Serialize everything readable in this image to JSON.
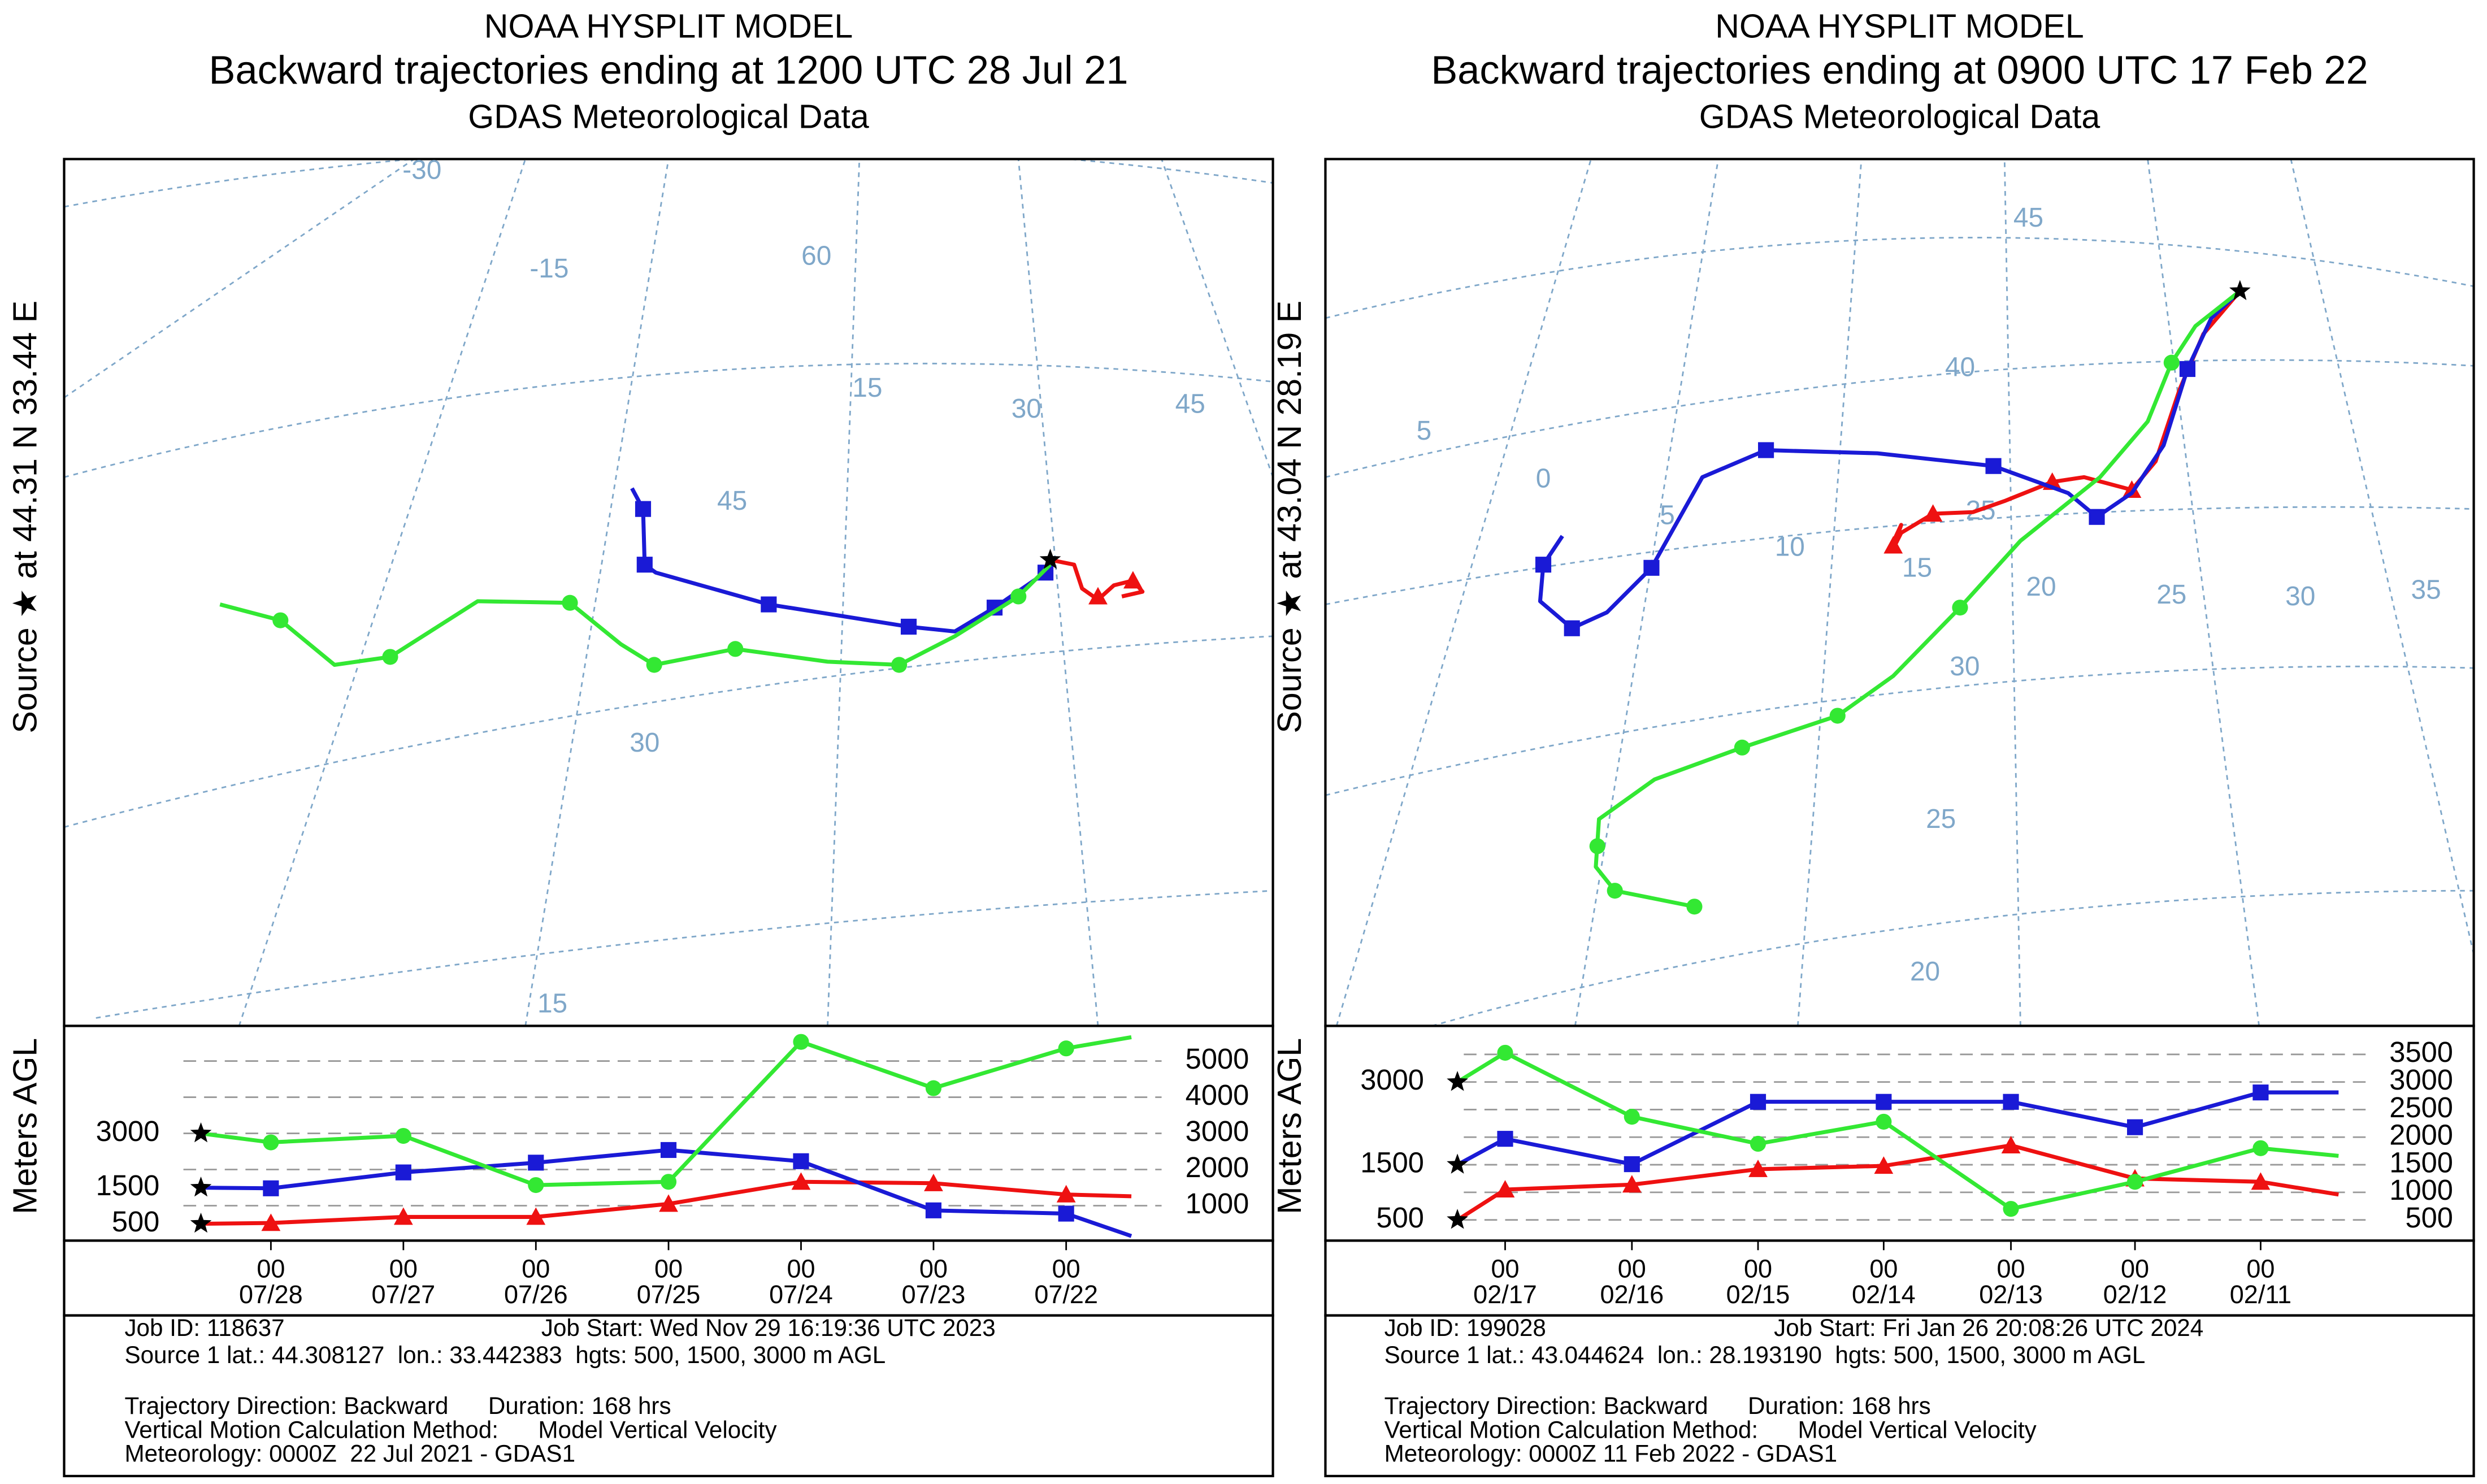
{
  "chart_data": [
    {
      "type": "trajectory",
      "title": "NOAA HYSPLIT MODEL",
      "subtitle": "Backward trajectories ending at 1200 UTC 28 Jul 21",
      "subtitle2": "GDAS Meteorological Data",
      "source_label": "Source ★ at 44.31 N 33.44 E",
      "ylabel": "Meters AGL",
      "start_heights": [
        500,
        1500,
        3000
      ],
      "hour_label": "00",
      "categories": [
        null,
        "07/28",
        "07/27",
        "07/26",
        "07/25",
        "07/24",
        "07/23",
        "07/22",
        null
      ],
      "series": [
        {
          "color": "#ee1111",
          "values": [
            500,
            520,
            690,
            690,
            1050,
            1660,
            1620,
            1310,
            1260
          ]
        },
        {
          "color": "#1a1ad6",
          "values": [
            1500,
            1480,
            1920,
            2190,
            2540,
            2230,
            870,
            780,
            160
          ]
        },
        {
          "color": "#33e833",
          "values": [
            3000,
            2750,
            2930,
            1570,
            1660,
            5530,
            4250,
            5350,
            5660
          ]
        }
      ],
      "ylim": [
        0,
        5840
      ],
      "yticks": [
        1000,
        2000,
        3000,
        4000,
        5000
      ],
      "map": {
        "grid_labels": [
          "-30",
          "-15",
          "60",
          "15",
          "45",
          "30",
          "45",
          "30",
          "15"
        ]
      },
      "footer": {
        "job_id": "Job ID: 118637",
        "job_start": "Job Start: Wed Nov 29 16:19:36 UTC 2023",
        "lines": [
          "Source 1 lat.: 44.308127  lon.: 33.442383  hgts: 500, 1500, 3000 m AGL",
          "Trajectory Direction: Backward      Duration: 168 hrs",
          "Vertical Motion Calculation Method:      Model Vertical Velocity",
          "Meteorology: 0000Z  22 Jul 2021 - GDAS1"
        ]
      }
    },
    {
      "type": "trajectory",
      "title": "NOAA HYSPLIT MODEL",
      "subtitle": "Backward trajectories ending at 0900 UTC 17 Feb 22",
      "subtitle2": "GDAS Meteorological Data",
      "source_label": "Source ★ at 43.04 N 28.19 E",
      "ylabel": "Meters AGL",
      "start_heights": [
        500,
        1500,
        3000
      ],
      "hour_label": "00",
      "categories": [
        null,
        "02/17",
        "02/16",
        "02/15",
        "02/14",
        "02/13",
        "02/12",
        "02/11",
        null
      ],
      "series": [
        {
          "color": "#ee1111",
          "values": [
            500,
            1050,
            1140,
            1420,
            1480,
            1850,
            1250,
            1190,
            960
          ]
        },
        {
          "color": "#1a1ad6",
          "values": [
            1500,
            1970,
            1510,
            2640,
            2640,
            2640,
            2180,
            2810,
            2810
          ]
        },
        {
          "color": "#33e833",
          "values": [
            3000,
            3530,
            2370,
            1880,
            2280,
            700,
            1190,
            1800,
            1660
          ]
        }
      ],
      "ylim": [
        0,
        3930
      ],
      "yticks": [
        500,
        1000,
        1500,
        2000,
        2500,
        3000,
        3500
      ],
      "map": {
        "grid_labels": [
          "45",
          "40",
          "5",
          "0",
          "5",
          "10",
          "15",
          "25",
          "20",
          "25",
          "30",
          "35",
          "30",
          "25",
          "20"
        ]
      },
      "footer": {
        "job_id": "Job ID: 199028",
        "job_start": "Job Start: Fri Jan 26 20:08:26 UTC 2024",
        "lines": [
          "Source 1 lat.: 43.044624  lon.: 28.193190  hgts: 500, 1500, 3000 m AGL",
          "Trajectory Direction: Backward      Duration: 168 hrs",
          "Vertical Motion Calculation Method:      Model Vertical Velocity",
          "Meteorology: 0000Z 11 Feb 2022 - GDAS1"
        ]
      }
    }
  ]
}
